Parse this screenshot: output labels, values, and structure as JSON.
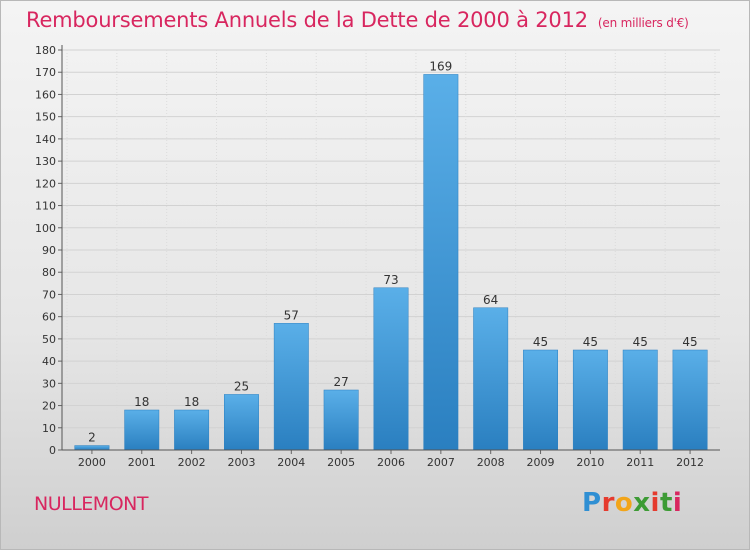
{
  "header": {
    "title": "Remboursements Annuels de la Dette de 2000 à 2012",
    "unit": "(en milliers d'€)"
  },
  "footer": {
    "city": "NULLEMONT",
    "brand_letters": [
      "P",
      "r",
      "o",
      "x",
      "i",
      "t",
      "i"
    ],
    "brand_colors": [
      "#2f8fd3",
      "#e53b2e",
      "#f2a51a",
      "#3d9b35",
      "#e53b2e",
      "#3d9b35",
      "#d8265f"
    ]
  },
  "chart_data": {
    "type": "bar",
    "categories": [
      "2000",
      "2001",
      "2002",
      "2003",
      "2004",
      "2005",
      "2006",
      "2007",
      "2008",
      "2009",
      "2010",
      "2011",
      "2012"
    ],
    "values": [
      2,
      18,
      18,
      25,
      57,
      27,
      73,
      169,
      64,
      45,
      45,
      45,
      45
    ],
    "title": "Remboursements Annuels de la Dette de 2000 à 2012",
    "xlabel": "",
    "ylabel": "",
    "ylim": [
      0,
      180
    ],
    "ytick_step": 10,
    "grid": true,
    "bar_color": "#3d9ade"
  }
}
